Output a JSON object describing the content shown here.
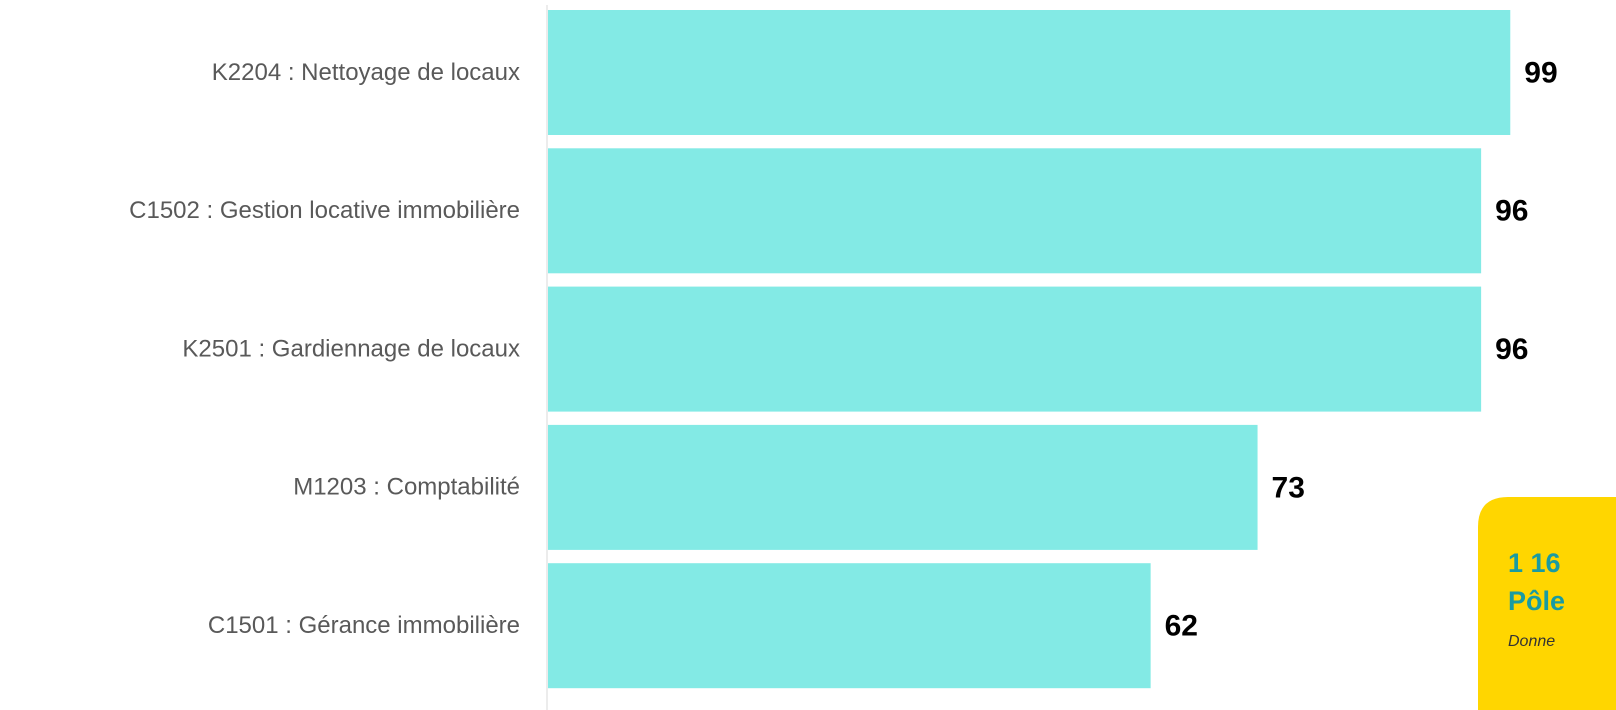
{
  "chart_data": {
    "type": "hbar",
    "categories": [
      "K2204 : Nettoyage de locaux",
      "C1502 : Gestion locative immobilière",
      "K2501 : Gardiennage de locaux",
      "M1203 : Comptabilité",
      "C1501 : Gérance immobilière"
    ],
    "values": [
      99,
      96,
      96,
      73,
      62
    ],
    "color": "#83eae5",
    "annotations": [
      "1 16",
      "Pôle",
      "Donne"
    ]
  }
}
